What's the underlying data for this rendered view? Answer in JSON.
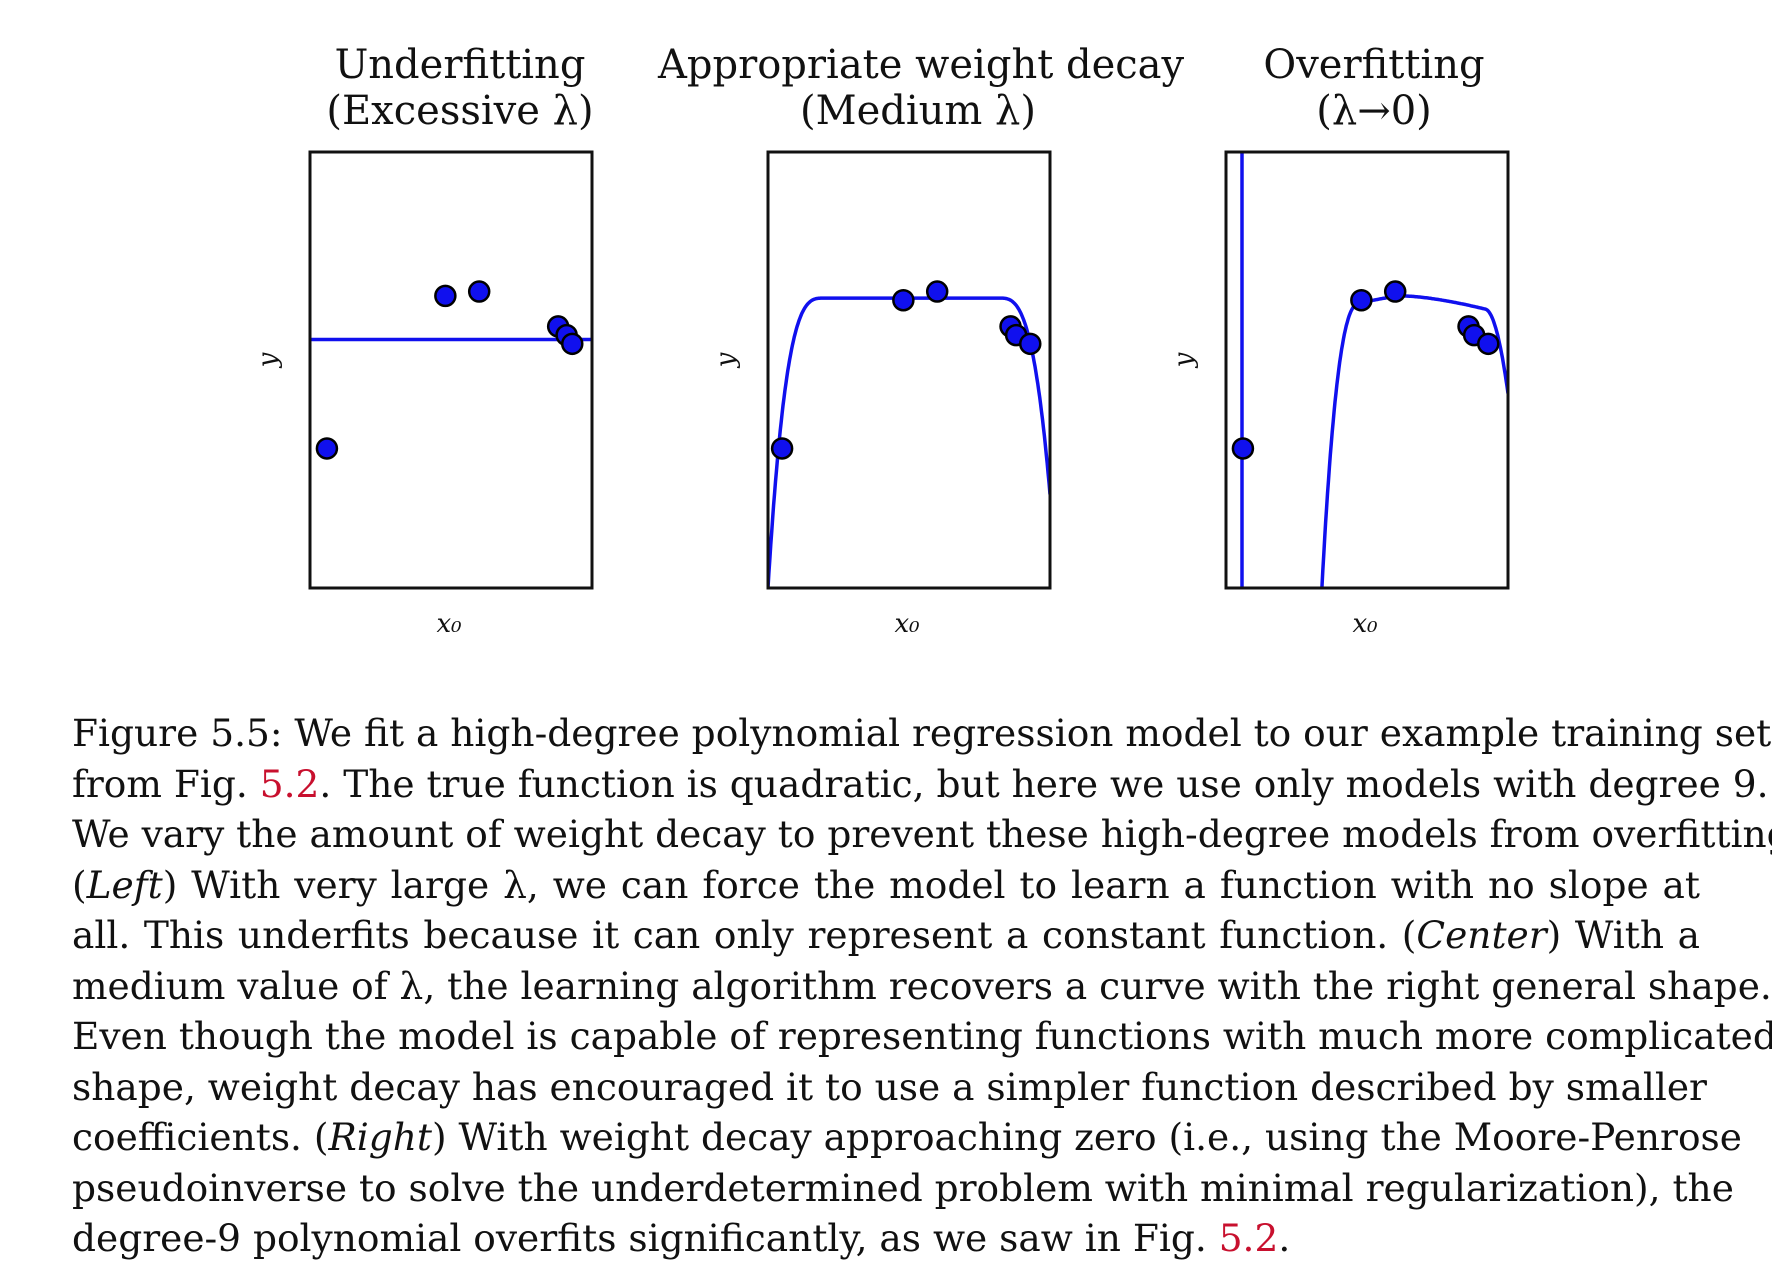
{
  "chart_data": [
    {
      "type": "scatter",
      "title_lines": [
        "Underfitting",
        "(Excessive λ)"
      ],
      "xlabel": "x₀",
      "ylabel": "y",
      "points": [
        [
          0.06,
          0.32
        ],
        [
          0.48,
          0.67
        ],
        [
          0.6,
          0.68
        ],
        [
          0.88,
          0.6
        ],
        [
          0.91,
          0.58
        ],
        [
          0.93,
          0.56
        ]
      ],
      "fit_curve": "constant",
      "line_color": "#1010ee",
      "point_color": "#1010ee"
    },
    {
      "type": "scatter",
      "title_lines": [
        "Appropriate weight decay",
        "(Medium λ)"
      ],
      "xlabel": "x₀",
      "ylabel": "y",
      "points": [
        [
          0.05,
          0.32
        ],
        [
          0.48,
          0.66
        ],
        [
          0.6,
          0.68
        ],
        [
          0.86,
          0.6
        ],
        [
          0.88,
          0.58
        ],
        [
          0.93,
          0.56
        ]
      ],
      "fit_curve": "smooth",
      "line_color": "#1010ee",
      "point_color": "#1010ee"
    },
    {
      "type": "scatter",
      "title_lines": [
        "Overfitting",
        "(λ→0)"
      ],
      "xlabel": "x₀",
      "ylabel": "y",
      "points": [
        [
          0.06,
          0.32
        ],
        [
          0.48,
          0.66
        ],
        [
          0.6,
          0.68
        ],
        [
          0.86,
          0.6
        ],
        [
          0.88,
          0.58
        ],
        [
          0.93,
          0.56
        ]
      ],
      "fit_curve": "wiggly",
      "line_color": "#1010ee",
      "point_color": "#1010ee"
    }
  ],
  "caption": {
    "lines": [
      [
        {
          "t": "Figure 5.5:  We fit a high-degree polynomial regression model to our example training set"
        }
      ],
      [
        {
          "t": "from Fig. "
        },
        {
          "t": "5.2",
          "ref": true
        },
        {
          "t": ".  The true function is quadratic, but here we use only models with degree 9."
        }
      ],
      [
        {
          "t": "We vary the amount of weight decay to prevent these high-degree models from overfitting."
        }
      ],
      [
        {
          "t": "("
        },
        {
          "t": "Left",
          "it": true
        },
        {
          "t": ") With very large λ, we can force the model to learn a function with no slope at"
        }
      ],
      [
        {
          "t": "all.  This underfits because it can only represent a constant function.  ("
        },
        {
          "t": "Center",
          "it": true
        },
        {
          "t": ") With a"
        }
      ],
      [
        {
          "t": "medium value of λ, the learning algorithm recovers a curve with the right general shape."
        }
      ],
      [
        {
          "t": "Even though the model is capable of representing functions with much more complicated"
        }
      ],
      [
        {
          "t": "shape, weight decay has encouraged it to use a simpler function described by smaller"
        }
      ],
      [
        {
          "t": "coefficients. ("
        },
        {
          "t": "Right",
          "it": true
        },
        {
          "t": ") With weight decay approaching zero (i.e., using the Moore-Penrose"
        }
      ],
      [
        {
          "t": "pseudoinverse to solve the underdetermined problem with minimal regularization), the"
        }
      ],
      [
        {
          "t": "degree-9 polynomial overfits significantly, as we saw in Fig. "
        },
        {
          "t": "5.2",
          "ref": true
        },
        {
          "t": "."
        }
      ]
    ]
  }
}
